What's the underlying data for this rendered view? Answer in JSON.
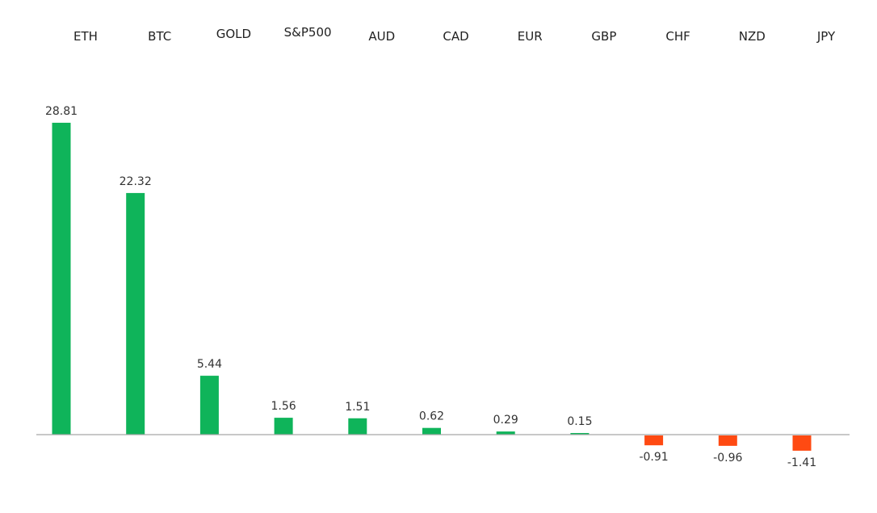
{
  "chart_data": {
    "type": "bar",
    "title": "",
    "xlabel": "",
    "ylabel": "",
    "categories": [
      "ETH",
      "BTC",
      "GOLD",
      "S&P500",
      "AUD",
      "CAD",
      "EUR",
      "GBP",
      "CHF",
      "NZD",
      "JPY"
    ],
    "values": [
      28.81,
      22.32,
      5.44,
      1.56,
      1.51,
      0.62,
      0.29,
      0.15,
      -0.91,
      -0.96,
      -1.41
    ],
    "value_labels": [
      "28.81",
      "22.32",
      "5.44",
      "1.56",
      "1.51",
      "0.62",
      "0.29",
      "0.15",
      "-0.91",
      "-0.96",
      "-1.41"
    ],
    "ylim": [
      -1.41,
      28.81
    ],
    "grid": false,
    "legend": "none",
    "category_label_position": "top",
    "colors": {
      "positive": "#0fb45a",
      "negative": "#ff4a12",
      "baseline": "#a6a6a6"
    }
  }
}
